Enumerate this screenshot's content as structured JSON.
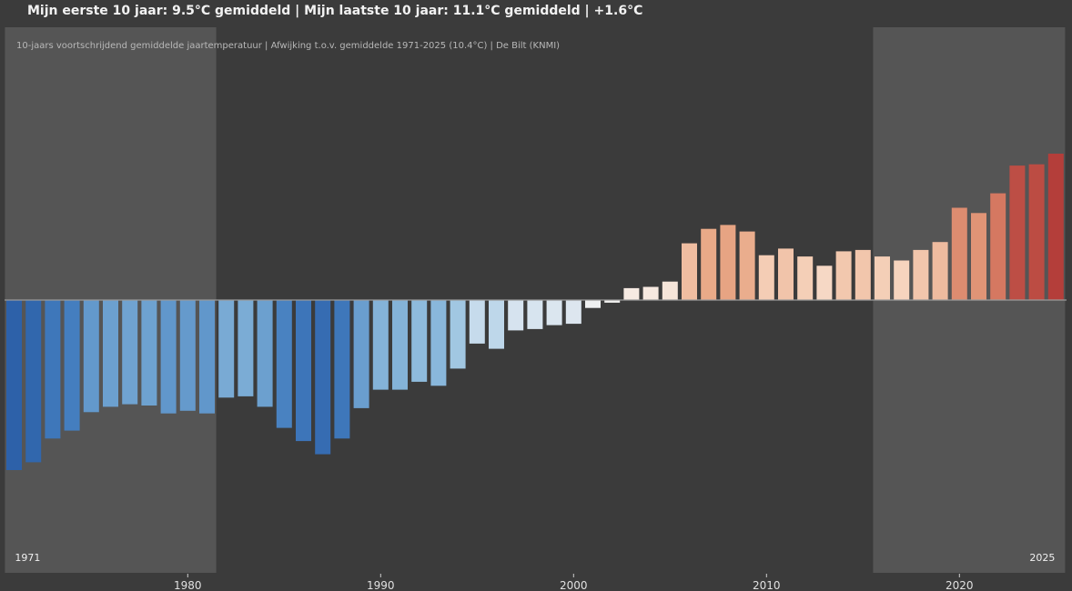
{
  "header": {
    "title": "Mijn eerste 10 jaar: 9.5°C gemiddeld  |  Mijn laatste 10 jaar: 11.1°C gemiddeld  |  +1.6°C",
    "subtitle": "10-jaars voortschrijdend gemiddelde jaartemperatuur  |  Afwijking t.o.v. gemiddelde 1971-2025 (10.4°C)  |  De Bilt (KNMI)"
  },
  "colors": {
    "background": "#3b3b3b",
    "highlight": "#555555",
    "zero_line": "#9a9a9a"
  },
  "chart_data": {
    "type": "bar",
    "title": "Mijn eerste 10 jaar: 9.5°C gemiddeld  |  Mijn laatste 10 jaar: 11.1°C gemiddeld  |  +1.6°C",
    "subtitle": "10-jaars voortschrijdend gemiddelde jaartemperatuur  |  Afwijking t.o.v. gemiddelde 1971-2025 (10.4°C)  |  De Bilt (KNMI)",
    "xlabel": "",
    "ylabel": "",
    "baseline": 10.4,
    "ylim": [
      -1.35,
      2.05
    ],
    "xlim": [
      1970.6,
      2025.6
    ],
    "grid": false,
    "x_ticks": [
      1980,
      1990,
      2000,
      2010,
      2020
    ],
    "x_tick_labels": [
      "1980",
      "1990",
      "2000",
      "2010",
      "2020"
    ],
    "highlight_ranges": [
      {
        "from": 1971,
        "to": 1981,
        "label": "1971"
      },
      {
        "from": 2016,
        "to": 2025,
        "label": "2025"
      }
    ],
    "categories": [
      1971,
      1972,
      1973,
      1974,
      1975,
      1976,
      1977,
      1978,
      1979,
      1980,
      1981,
      1982,
      1983,
      1984,
      1985,
      1986,
      1987,
      1988,
      1989,
      1990,
      1991,
      1992,
      1993,
      1994,
      1995,
      1996,
      1997,
      1998,
      1999,
      2000,
      2001,
      2002,
      2003,
      2004,
      2005,
      2006,
      2007,
      2008,
      2009,
      2010,
      2011,
      2012,
      2013,
      2014,
      2015,
      2016,
      2017,
      2018,
      2019,
      2020,
      2021,
      2022,
      2023,
      2024,
      2025
    ],
    "values": [
      -1.29,
      -1.23,
      -1.05,
      -0.99,
      -0.85,
      -0.81,
      -0.79,
      -0.8,
      -0.86,
      -0.84,
      -0.86,
      -0.74,
      -0.73,
      -0.81,
      -0.97,
      -1.07,
      -1.17,
      -1.05,
      -0.82,
      -0.68,
      -0.68,
      -0.62,
      -0.65,
      -0.52,
      -0.33,
      -0.37,
      -0.23,
      -0.22,
      -0.19,
      -0.18,
      -0.06,
      -0.02,
      0.09,
      0.1,
      0.14,
      0.43,
      0.54,
      0.57,
      0.52,
      0.34,
      0.39,
      0.33,
      0.26,
      0.37,
      0.38,
      0.33,
      0.3,
      0.38,
      0.44,
      0.7,
      0.66,
      0.81,
      1.02,
      1.03,
      1.11
    ]
  }
}
